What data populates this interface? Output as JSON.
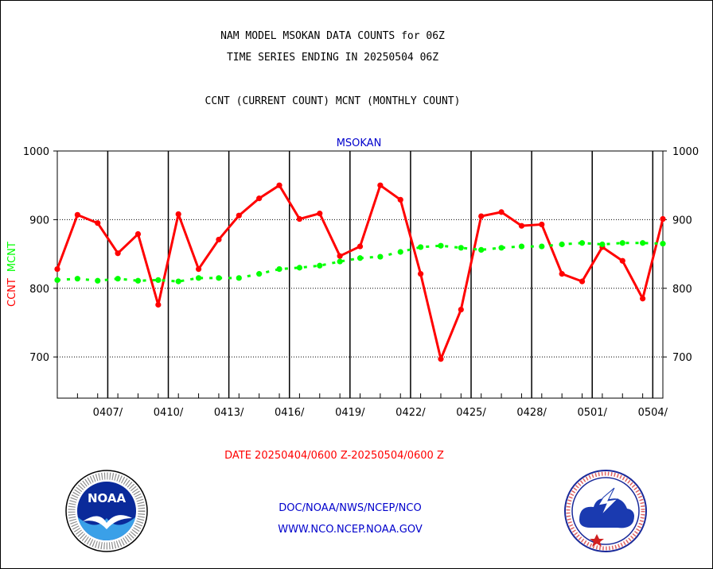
{
  "header": {
    "title_line1": "NAM MODEL MSOKAN DATA COUNTS for 06Z",
    "title_line2": "TIME SERIES ENDING IN 20250504 06Z",
    "subtitle": "CCNT (CURRENT COUNT) MCNT (MONTHLY COUNT)"
  },
  "footer": {
    "date_range": "DATE 20250404/0600 Z-20250504/0600 Z",
    "org": "DOC/NOAA/NWS/NCEP/NCO",
    "url": "WWW.NCO.NCEP.NOAA.GOV"
  },
  "logos": {
    "left": {
      "icon": "noaa-logo-icon",
      "label": "NOAA"
    },
    "right": {
      "icon": "nws-logo-icon"
    }
  },
  "colors": {
    "ccnt": "#ff0000",
    "mcnt": "#00ff00",
    "station_label": "#0000cc",
    "credit": "#0000cc"
  },
  "chart_data": {
    "type": "line",
    "title": "MSOKAN",
    "ylabel_left": [
      "CCNT",
      "MCNT"
    ],
    "ylim": [
      640,
      1000
    ],
    "yticks": [
      700,
      800,
      900,
      1000
    ],
    "xticks": [
      "0407/",
      "0410/",
      "0413/",
      "0416/",
      "0419/",
      "0422/",
      "0425/",
      "0428/",
      "0501/",
      "0504/"
    ],
    "x_start_date": "20250404",
    "grid": true,
    "series": [
      {
        "name": "CCNT",
        "color": "#ff0000",
        "style": "solid",
        "values": [
          828,
          907,
          895,
          851,
          879,
          776,
          908,
          828,
          871,
          906,
          931,
          950,
          901,
          909,
          847,
          861,
          950,
          929,
          821,
          697,
          769,
          905,
          911,
          891,
          893,
          821,
          810,
          860,
          840,
          785,
          901
        ]
      },
      {
        "name": "MCNT",
        "color": "#00ff00",
        "style": "dashed",
        "values": [
          812,
          814,
          811,
          814,
          811,
          812,
          810,
          815,
          815,
          815,
          821,
          828,
          830,
          833,
          839,
          844,
          846,
          853,
          860,
          862,
          859,
          856,
          859,
          861,
          861,
          864,
          866,
          864,
          866,
          866,
          865
        ]
      }
    ]
  }
}
